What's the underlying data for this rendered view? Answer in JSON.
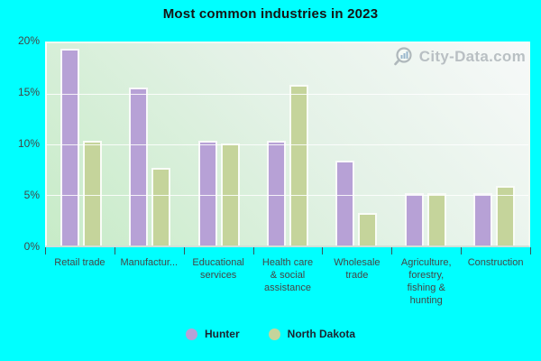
{
  "watermark": {
    "text": "City-Data.com",
    "icon": "magnifier-chart-icon"
  },
  "colors": {
    "background": "#00ffff",
    "plot_gradient_top_right": "#f7f9f9",
    "plot_gradient_bottom_left": "#c7ebc7",
    "hunter_bar": "#b7a1d6",
    "north_dakota_bar": "#c5d49b",
    "axis_text": "#454545",
    "title_text": "#151515",
    "watermark_text": "#b3babe"
  },
  "chart_data": {
    "type": "bar",
    "title": "Most common industries in 2023",
    "categories": [
      "Retail trade",
      "Manufactur...",
      "Educational\nservices",
      "Health care\n& social\nassistance",
      "Wholesale\ntrade",
      "Agriculture,\nforestry,\nfishing &\nhunting",
      "Construction"
    ],
    "series": [
      {
        "name": "Hunter",
        "color": "#b7a1d6",
        "values": [
          19.5,
          15.6,
          10.4,
          10.4,
          8.4,
          5.2,
          5.2
        ]
      },
      {
        "name": "North Dakota",
        "color": "#c5d49b",
        "values": [
          10.4,
          7.7,
          10.1,
          15.9,
          3.2,
          5.2,
          5.9
        ]
      }
    ],
    "ylim": [
      0,
      20
    ],
    "yticks": [
      {
        "label": "0%",
        "value": 0
      },
      {
        "label": "5%",
        "value": 5
      },
      {
        "label": "10%",
        "value": 10
      },
      {
        "label": "15%",
        "value": 15
      },
      {
        "label": "20%",
        "value": 20
      }
    ],
    "grid_values": [
      5,
      10,
      15
    ],
    "grid": true,
    "legend_position": "bottom"
  }
}
